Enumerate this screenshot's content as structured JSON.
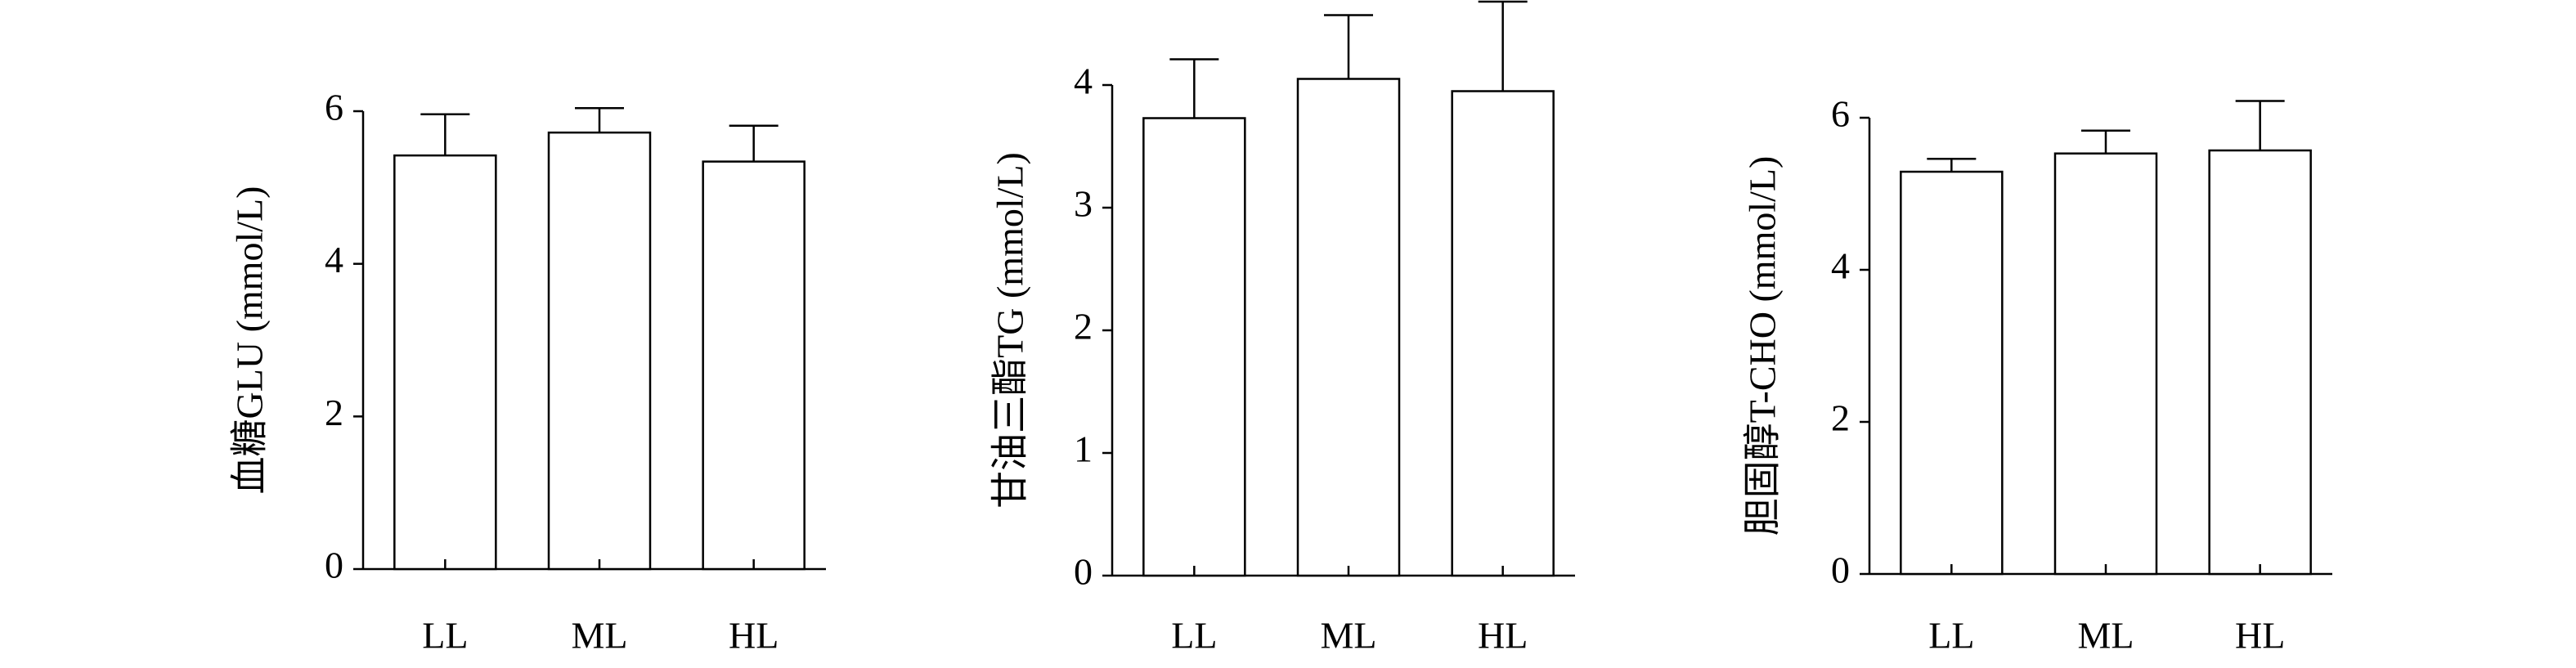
{
  "chart_data": [
    {
      "type": "bar",
      "ylabel": "血糖GLU (mmol/L)",
      "categories": [
        "LL",
        "ML",
        "HL"
      ],
      "values": [
        5.42,
        5.72,
        5.34
      ],
      "errors": [
        0.54,
        0.32,
        0.47
      ],
      "color": "#ffffff",
      "ylim": [
        0,
        6
      ],
      "yticks": [
        0,
        2,
        4,
        6
      ]
    },
    {
      "type": "bar",
      "ylabel": "甘油三酯TG (mmol/L)",
      "categories": [
        "LL",
        "ML",
        "HL"
      ],
      "values": [
        3.73,
        4.05,
        3.95
      ],
      "errors": [
        0.48,
        0.52,
        0.73
      ],
      "color": "#ffffff",
      "ylim": [
        0,
        4
      ],
      "yticks": [
        0,
        1,
        2,
        3,
        4
      ]
    },
    {
      "type": "bar",
      "ylabel": "胆固醇T-CHO (mmol/L)",
      "categories": [
        "LL",
        "ML",
        "HL"
      ],
      "values": [
        5.29,
        5.53,
        5.57
      ],
      "errors": [
        0.17,
        0.3,
        0.65
      ],
      "color": "#ffffff",
      "ylim": [
        0,
        6
      ],
      "yticks": [
        0,
        2,
        4,
        6
      ]
    }
  ]
}
